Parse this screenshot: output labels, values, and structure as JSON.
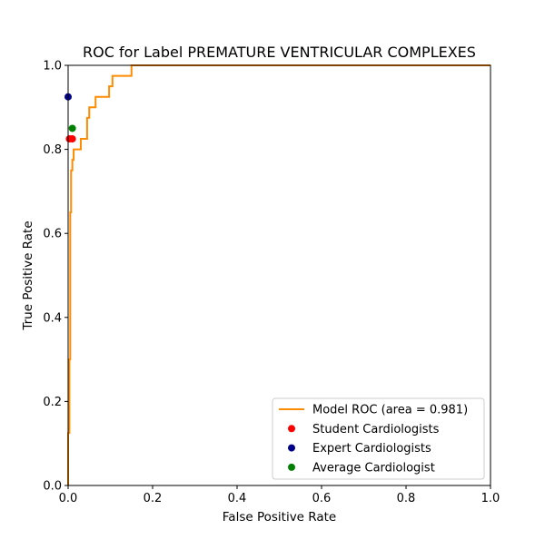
{
  "chart_data": {
    "type": "line",
    "title": "ROC for Label PREMATURE VENTRICULAR COMPLEXES",
    "xlabel": "False Positive Rate",
    "ylabel": "True Positive Rate",
    "xlim": [
      0,
      1
    ],
    "ylim": [
      0,
      1
    ],
    "xticks": [
      "0.0",
      "0.2",
      "0.4",
      "0.6",
      "0.8",
      "1.0"
    ],
    "yticks": [
      "0.0",
      "0.2",
      "0.4",
      "0.6",
      "0.8",
      "1.0"
    ],
    "grid": false,
    "legend_position": "lower-right",
    "series": [
      {
        "name": "Model ROC (area = 0.981)",
        "kind": "line",
        "color": "#ff8c00",
        "x": [
          0,
          0,
          0.003,
          0.003,
          0.005,
          0.005,
          0.007,
          0.007,
          0.01,
          0.01,
          0.013,
          0.013,
          0.03,
          0.03,
          0.045,
          0.045,
          0.05,
          0.05,
          0.065,
          0.065,
          0.097,
          0.097,
          0.105,
          0.105,
          0.15,
          0.15,
          1.0
        ],
        "y": [
          0,
          0.125,
          0.125,
          0.3,
          0.3,
          0.65,
          0.65,
          0.75,
          0.75,
          0.775,
          0.775,
          0.8,
          0.8,
          0.825,
          0.825,
          0.875,
          0.875,
          0.9,
          0.9,
          0.925,
          0.925,
          0.95,
          0.95,
          0.975,
          0.975,
          1.0,
          1.0
        ]
      },
      {
        "name": "Student Cardiologists",
        "kind": "scatter",
        "color": "#ff0000",
        "points": [
          {
            "x": 0.003,
            "y": 0.825
          },
          {
            "x": 0.01,
            "y": 0.825
          }
        ]
      },
      {
        "name": "Expert Cardiologists",
        "kind": "scatter",
        "color": "#00008b",
        "points": [
          {
            "x": 0.0,
            "y": 0.925
          }
        ]
      },
      {
        "name": "Average Cardiologist",
        "kind": "scatter",
        "color": "#008000",
        "points": [
          {
            "x": 0.01,
            "y": 0.85
          }
        ]
      }
    ]
  }
}
